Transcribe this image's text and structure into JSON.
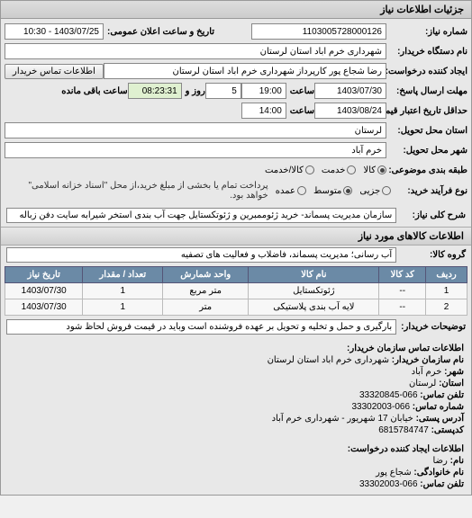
{
  "header": {
    "title": "جزئیات اطلاعات نیاز"
  },
  "fields": {
    "need_no_label": "شماره نیاز:",
    "need_no": "1103005728000126",
    "announce_label": "تاریخ و ساعت اعلان عمومی:",
    "announce": "1403/07/25 - 10:30",
    "org_label": "نام دستگاه خریدار:",
    "org": "شهرداری خرم اباد استان لرستان",
    "creator_label": "ایجاد کننده درخواست:",
    "creator": "رضا شجاع پور کارپرداز شهرداری خرم اباد استان لرستان",
    "contact_btn": "اطلاعات تماس خریدار",
    "reply_deadline_label": "مهلت ارسال پاسخ:",
    "reply_date": "1403/07/30",
    "reply_time_label": "ساعت",
    "reply_time": "19:00",
    "days_left": "5",
    "days_left_label": "روز و",
    "time_left": "08:23:31",
    "time_left_label": "ساعت باقی مانده",
    "price_valid_label": "حداقل تاریخ اعتبار قیمت تا تاریخ:",
    "price_valid_date": "1403/08/24",
    "price_valid_time": "14:00",
    "province_label": "استان محل تحویل:",
    "province": "لرستان",
    "city_label": "شهر محل تحویل:",
    "city": "خرم آباد",
    "group_type_label": "طبقه بندی موضوعی:",
    "radio_goods": "کالا",
    "radio_service": "خدمت",
    "radio_goods_service": "کالا/خدمت",
    "buy_type_label": "نوع فرآیند خرید:",
    "radio_small": "جزیی",
    "radio_medium": "متوسط",
    "radio_large": "عمده",
    "buy_note": "پرداخت تمام یا بخشی از مبلغ خرید،از محل \"اسناد خزانه اسلامی\" خواهد بود."
  },
  "need_key": {
    "label": "شرح کلی نیاز:",
    "value": "سازمان مدیریت پسماند- خرید ژئوممبرین و ژئوتکستایل جهت آب بندی استخر شیرابه سایت دفن زباله"
  },
  "goods_section": {
    "title": "اطلاعات کالاهای مورد نیاز",
    "group_label": "گروه کالا:",
    "group_value": "آب رسانی؛ مدیریت پسماند، فاضلاب و فعالیت های تصفیه"
  },
  "table": {
    "cols": [
      "ردیف",
      "کد کالا",
      "نام کالا",
      "واحد شمارش",
      "تعداد / مقدار",
      "تاریخ نیاز"
    ],
    "rows": [
      [
        "1",
        "--",
        "ژئوتکستایل",
        "متر مربع",
        "1",
        "1403/07/30"
      ],
      [
        "2",
        "--",
        "لایه آب بندی پلاستیکی",
        "متر",
        "1",
        "1403/07/30"
      ]
    ]
  },
  "buyer_desc": {
    "label": "توضیحات خریدار:",
    "value": "بارگیری و حمل و تخلیه و تحویل بر عهده فروشنده است وباید در قیمت فروش لحاظ شود"
  },
  "contact_section": {
    "title": "اطلاعات تماس سازمان خریدار:",
    "org_label": "نام سازمان خریدار:",
    "org": "شهرداری خرم اباد استان لرستان",
    "city_label": "شهر:",
    "city": "خرم آباد",
    "province_label": "استان:",
    "province": "لرستان",
    "phone_label": "تلفن تماس:",
    "phone": "066-33320845",
    "fax_label": "شماره تماس:",
    "fax": "066-33302003",
    "addr_label": "آدرس پستی:",
    "addr": "خیابان 17 شهریور - شهرداری خرم آباد",
    "postcode_label": "کدپستی:",
    "postcode": "6815784747"
  },
  "creator_section": {
    "title": "اطلاعات ایجاد کننده درخواست:",
    "name_label": "نام:",
    "name": "رضا",
    "family_label": "نام خانوادگی:",
    "family": "شجاع پور",
    "phone_label": "تلفن تماس:",
    "phone": "066-33302003"
  }
}
